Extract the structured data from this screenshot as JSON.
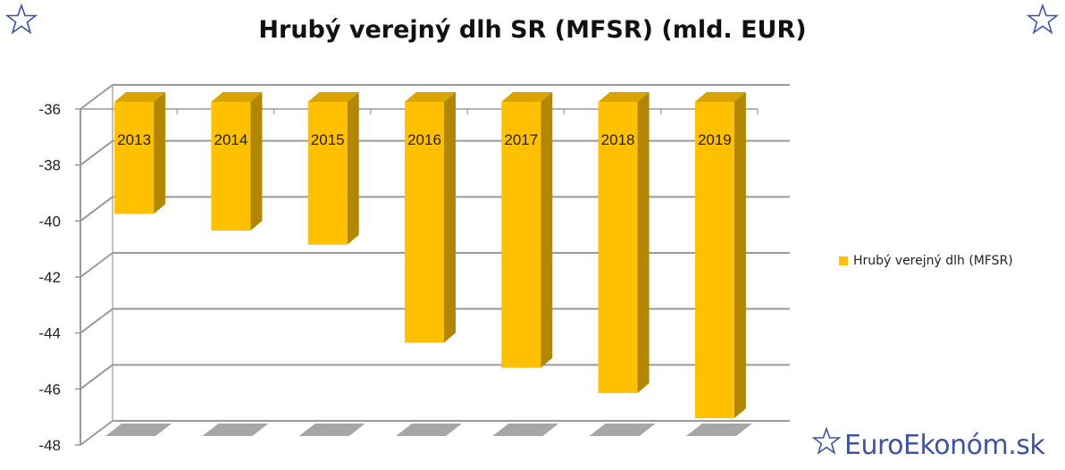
{
  "colors": {
    "bar_front": "#ffc000",
    "bar_side": "#b38600",
    "bar_top": "#d9a300",
    "floor_shadow": "#a6a6a6",
    "grid": "#9a9a9a",
    "brand": "#3f53a4"
  },
  "icons": {
    "corner": "star-icon",
    "brand": "star-icon"
  },
  "brand_text": "EuroEkonóm.sk",
  "chart_data": {
    "type": "bar",
    "title": "Hrubý verejný dlh SR (MFSR) (mld. EUR)",
    "xlabel": "",
    "ylabel": "",
    "categories": [
      "2013",
      "2014",
      "2015",
      "2016",
      "2017",
      "2018",
      "2019"
    ],
    "series": [
      {
        "name": "Hrubý verejný dlh (MFSR)",
        "values": [
          -40.0,
          -40.6,
          -41.1,
          -44.6,
          -45.5,
          -46.4,
          -47.3
        ]
      }
    ],
    "ylim": [
      -48,
      -36
    ],
    "yticks": [
      "-36",
      "-38",
      "-40",
      "-42",
      "-44",
      "-46",
      "-48"
    ],
    "grid": true,
    "legend": "right",
    "style": "3d-column"
  }
}
